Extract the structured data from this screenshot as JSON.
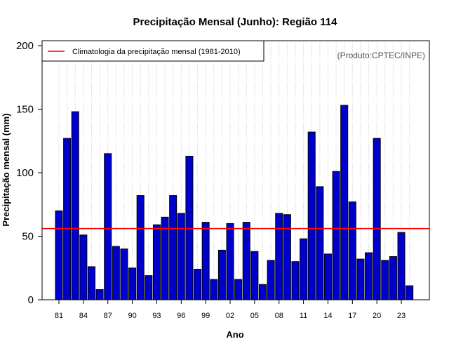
{
  "chart_data": {
    "type": "bar",
    "title": "Precipitação Mensal (Junho): Região 114",
    "xlabel": "Ano",
    "ylabel": "Precipitação mensal (mm)",
    "ylim": [
      0,
      200
    ],
    "yticks": [
      0,
      50,
      100,
      150,
      200
    ],
    "categories": [
      "81",
      "82",
      "83",
      "84",
      "85",
      "86",
      "87",
      "88",
      "89",
      "90",
      "91",
      "92",
      "93",
      "94",
      "95",
      "96",
      "97",
      "98",
      "99",
      "00",
      "01",
      "02",
      "03",
      "04",
      "05",
      "06",
      "07",
      "08",
      "09",
      "10",
      "11",
      "12",
      "13",
      "14",
      "15",
      "16",
      "17",
      "18",
      "19",
      "20",
      "21",
      "22",
      "23",
      "24"
    ],
    "xtick_labels": [
      "81",
      "84",
      "87",
      "90",
      "93",
      "96",
      "99",
      "02",
      "05",
      "08",
      "11",
      "14",
      "17",
      "20",
      "23"
    ],
    "values": [
      70,
      127,
      148,
      51,
      26,
      8,
      115,
      42,
      40,
      25,
      82,
      19,
      59,
      65,
      82,
      68,
      113,
      24,
      61,
      16,
      39,
      60,
      16,
      61,
      38,
      12,
      31,
      68,
      67,
      30,
      48,
      132,
      89,
      36,
      101,
      153,
      77,
      32,
      37,
      127,
      31,
      34,
      53,
      11
    ],
    "climatology": {
      "value": 56,
      "label": "Climatologia da precipitação mensal (1981-2010)",
      "color": "#ff0000"
    },
    "bar_color": "#0000cc",
    "legend_position": "top-left",
    "credit": "(Produto:CPTEC/INPE)",
    "grid": true
  }
}
